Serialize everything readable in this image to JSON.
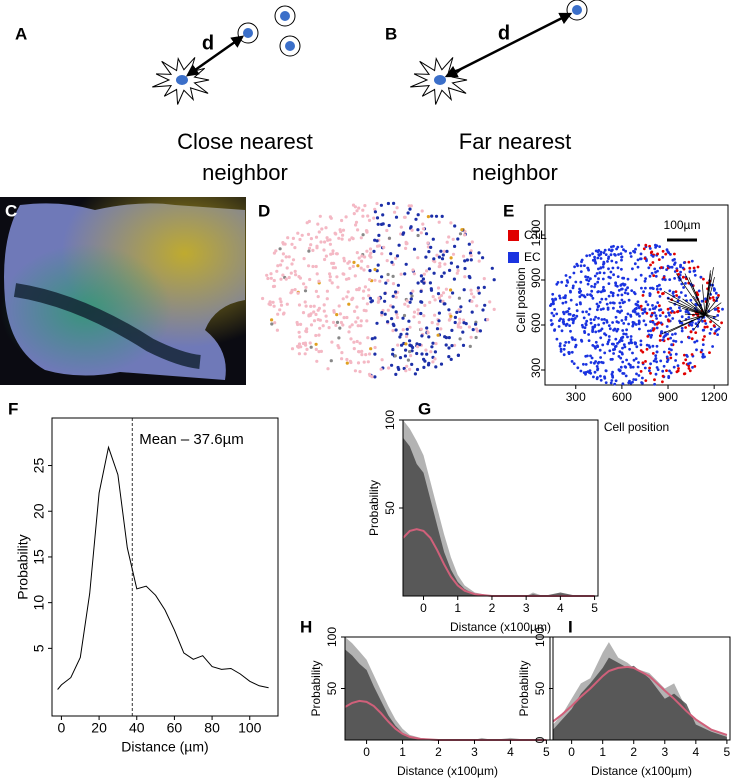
{
  "panels": {
    "A": {
      "label": "A",
      "d": "d",
      "caption": [
        "Close nearest",
        "neighbor"
      ]
    },
    "B": {
      "label": "B",
      "d": "d",
      "caption": [
        "Far nearest",
        "neighbor"
      ]
    },
    "C": {
      "label": "C"
    },
    "D": {
      "label": "D"
    },
    "E": {
      "label": "E",
      "legend": [
        {
          "name": "CTL",
          "color": "#e00000"
        },
        {
          "name": "EC",
          "color": "#1a33e0"
        }
      ],
      "scale_bar": "100µm",
      "xlabel": "Cell position",
      "ylabel": "Cell position",
      "xlim": [
        100,
        1290
      ],
      "ylim": [
        200,
        1400
      ],
      "xticks": [
        300,
        600,
        900,
        1200
      ],
      "yticks": [
        300,
        600,
        900,
        1200
      ]
    }
  },
  "chart_data": [
    {
      "type": "line",
      "label": "F",
      "xlabel": "Distance (µm)",
      "ylabel": "Probability",
      "xlim": [
        -5,
        115
      ],
      "ylim": [
        -2.4,
        30.2
      ],
      "xticks": [
        0,
        20,
        40,
        60,
        80,
        100
      ],
      "yticks": [
        5,
        10,
        15,
        20,
        25
      ],
      "vline": 37.6,
      "annotation": "Mean – 37.6µm",
      "x": [
        -2,
        0,
        5,
        10,
        15,
        20,
        25,
        30,
        35,
        40,
        45,
        50,
        55,
        60,
        65,
        70,
        75,
        80,
        85,
        90,
        95,
        100,
        105,
        110
      ],
      "series": [
        {
          "color": "#000000",
          "kind": "line",
          "values": [
            0.5,
            1,
            1.8,
            4,
            11,
            22,
            27,
            24,
            16,
            11.5,
            11.8,
            10.8,
            9.2,
            7,
            4.5,
            3.8,
            4.2,
            3,
            2.7,
            2.8,
            2.2,
            1.4,
            0.9,
            0.7
          ]
        }
      ]
    },
    {
      "type": "area",
      "label": "G",
      "xlabel": "Distance (x100µm)",
      "ylabel": "Probability",
      "xlim": [
        -0.6,
        5.1
      ],
      "ylim": [
        0,
        100
      ],
      "xticks": [
        0,
        1,
        2,
        3,
        4,
        5
      ],
      "yticks": [
        50,
        100
      ],
      "x": [
        -0.6,
        -0.4,
        -0.2,
        0,
        0.2,
        0.4,
        0.6,
        0.8,
        1,
        1.2,
        1.5,
        2,
        2.5,
        3,
        3.2,
        3.5,
        4,
        4.5,
        5
      ],
      "series": [
        {
          "color": "#9a9a9a",
          "kind": "area",
          "values": [
            100,
            95,
            88,
            80,
            65,
            50,
            35,
            22,
            12,
            6,
            2,
            0,
            0,
            0,
            2,
            0,
            1,
            0,
            0
          ]
        },
        {
          "color": "#3a3a3a",
          "kind": "area",
          "values": [
            90,
            85,
            75,
            70,
            55,
            40,
            25,
            15,
            8,
            4,
            1,
            0,
            0,
            0,
            1,
            0,
            2,
            0,
            0
          ]
        },
        {
          "color": "#d0607a",
          "kind": "line",
          "values": [
            33,
            37,
            38,
            37,
            33,
            26,
            18,
            11,
            6,
            3,
            1,
            0,
            0,
            0,
            0,
            0,
            0,
            0,
            0
          ]
        }
      ]
    },
    {
      "type": "area",
      "label": "H",
      "xlabel": "Distance (x100µm)",
      "ylabel": "Probability",
      "xlim": [
        -0.6,
        5.1
      ],
      "ylim": [
        0,
        100
      ],
      "xticks": [
        0,
        1,
        2,
        3,
        4,
        5
      ],
      "yticks": [
        50,
        100
      ],
      "x": [
        -0.6,
        -0.4,
        -0.2,
        0,
        0.2,
        0.4,
        0.6,
        0.8,
        1,
        1.2,
        1.5,
        2,
        2.5,
        3,
        3.2,
        3.5,
        4,
        4.5,
        5
      ],
      "series": [
        {
          "color": "#9a9a9a",
          "kind": "area",
          "values": [
            100,
            94,
            86,
            78,
            63,
            48,
            33,
            20,
            11,
            5,
            2,
            0,
            0,
            0,
            2,
            0,
            2,
            0,
            0
          ]
        },
        {
          "color": "#3a3a3a",
          "kind": "area",
          "values": [
            88,
            82,
            74,
            68,
            52,
            38,
            24,
            14,
            7,
            3,
            1,
            0,
            0,
            0,
            1,
            0,
            1,
            0,
            0
          ]
        },
        {
          "color": "#d0607a",
          "kind": "line",
          "values": [
            32,
            36,
            38,
            37,
            33,
            26,
            18,
            11,
            6,
            3,
            1,
            0,
            0,
            0,
            0,
            0,
            0,
            0,
            0
          ]
        }
      ]
    },
    {
      "type": "area",
      "label": "I",
      "xlabel": "Distance (x100µm)",
      "ylabel": "Probability",
      "xlim": [
        -0.6,
        5.1
      ],
      "ylim": [
        0,
        100
      ],
      "xticks": [
        0,
        1,
        2,
        3,
        4,
        5
      ],
      "yticks": [
        0,
        50,
        100
      ],
      "x": [
        -0.6,
        -0.3,
        0,
        0.3,
        0.6,
        1,
        1.2,
        1.5,
        1.8,
        2,
        2.5,
        3,
        3.3,
        3.7,
        4,
        4.5,
        5
      ],
      "series": [
        {
          "color": "#9a9a9a",
          "kind": "area",
          "values": [
            15,
            25,
            40,
            55,
            60,
            85,
            95,
            80,
            75,
            70,
            65,
            50,
            55,
            30,
            20,
            10,
            5
          ]
        },
        {
          "color": "#3a3a3a",
          "kind": "area",
          "values": [
            10,
            20,
            30,
            45,
            55,
            70,
            80,
            75,
            70,
            72,
            60,
            40,
            45,
            35,
            15,
            8,
            3
          ]
        },
        {
          "color": "#d0607a",
          "kind": "line",
          "values": [
            18,
            25,
            33,
            42,
            50,
            62,
            67,
            70,
            71,
            70,
            62,
            48,
            40,
            28,
            20,
            10,
            5
          ]
        }
      ]
    }
  ]
}
